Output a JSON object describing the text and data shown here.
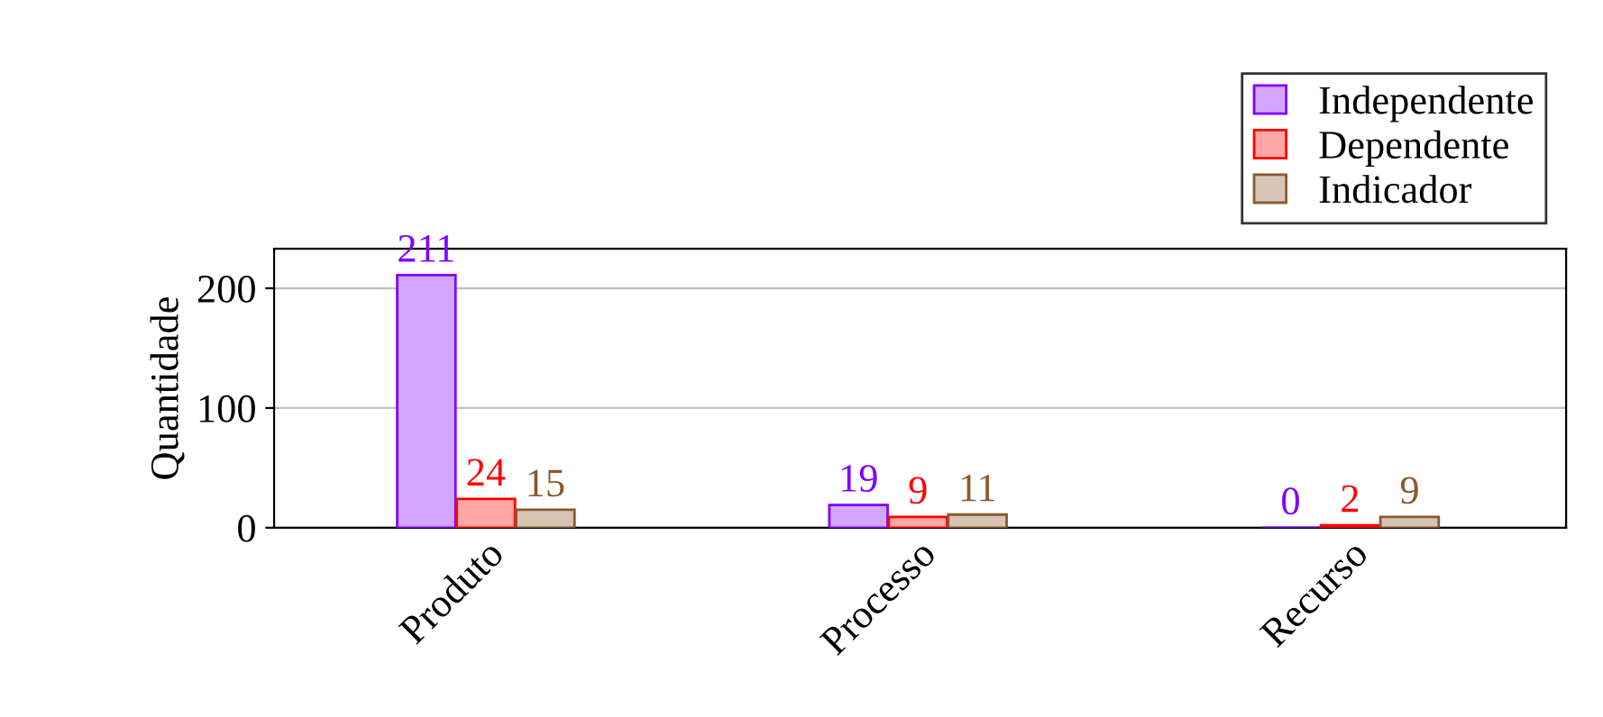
{
  "chart_data": {
    "type": "bar",
    "ylabel": "Quantidade",
    "categories": [
      "Produto",
      "Processo",
      "Recurso"
    ],
    "series": [
      {
        "name": "Independente",
        "color": "#7f00ff",
        "values": [
          211,
          19,
          0
        ]
      },
      {
        "name": "Dependente",
        "color": "#ff0000",
        "values": [
          24,
          9,
          2
        ]
      },
      {
        "name": "Indicador",
        "color": "#8b5a2b",
        "values": [
          15,
          11,
          9
        ]
      }
    ],
    "ylim": [
      0,
      233
    ],
    "yticks": [
      0,
      100,
      200
    ],
    "grid": "y",
    "legend": "top right",
    "data_labels": true
  }
}
